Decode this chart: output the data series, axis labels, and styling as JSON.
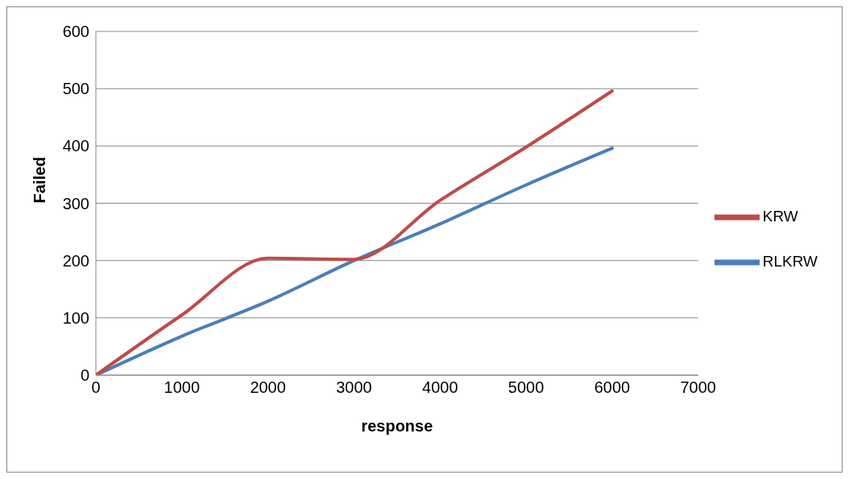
{
  "chart_data": {
    "type": "line",
    "xlabel": "response",
    "ylabel": "Failed",
    "x": [
      0,
      1000,
      2000,
      3000,
      4000,
      5000,
      6000
    ],
    "series": [
      {
        "name": "RLKRW",
        "color": "#4a7ebb",
        "values": [
          0,
          68,
          129,
          200,
          264,
          332,
          396
        ]
      },
      {
        "name": "KRW",
        "color": "#be4b48",
        "values": [
          0,
          105,
          204,
          202,
          305,
          398,
          496
        ]
      }
    ],
    "xlim": [
      0,
      7000
    ],
    "xticks": [
      0,
      1000,
      2000,
      3000,
      4000,
      5000,
      6000,
      7000
    ],
    "ylim": [
      0,
      600
    ],
    "yticks": [
      0,
      100,
      200,
      300,
      400,
      500,
      600
    ],
    "grid": "y",
    "legend": "right",
    "marker": "none",
    "line_style": "solid"
  }
}
